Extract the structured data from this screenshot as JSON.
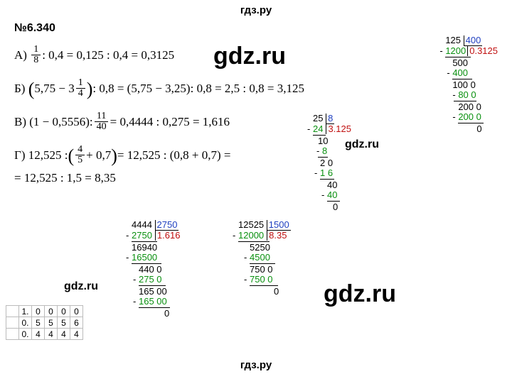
{
  "header": "гдз.ру",
  "footer": "гдз.ру",
  "problem_number": "№6.340",
  "watermarks": {
    "big1": "gdz.ru",
    "big2": "gdz.ru",
    "small1": "gdz.ru",
    "small2": "gdz.ru"
  },
  "lines": {
    "a_label": "А)",
    "a_frac_num": "1",
    "a_frac_den": "8",
    "a_rest": " : 0,4 = 0,125 : 0,4 = 0,3125",
    "b_label": "Б)",
    "b_inside_left": "5,75 − 3",
    "b_mixed_num": "1",
    "b_mixed_den": "4",
    "b_rest": " : 0,8 = (5,75 − 3,25): 0,8 = 2,5 : 0,8 = 3,125",
    "c_label": "В)",
    "c_part1": "(1 − 0,5556): ",
    "c_frac_num": "11",
    "c_frac_den": "40",
    "c_rest": " = 0,4444 : 0,275 = 1,616",
    "d_label": "Г)",
    "d_part1": "12,525 : ",
    "d_frac_num": "4",
    "d_frac_den": "5",
    "d_part2": " + 0,7",
    "d_rest": " = 12,525 : (0,8 + 0,7) =",
    "d_line2": "= 12,525 : 1,5 = 8,35"
  },
  "ld1": {
    "dividend": "125",
    "divisor": "400",
    "quotient": "0.3125",
    "steps": [
      {
        "minus": true,
        "val": "1200",
        "pad": 0,
        "green": true
      },
      {
        "hline_w": 36,
        "pad": 0
      },
      {
        "val": "500",
        "pad": 10
      },
      {
        "minus": true,
        "val": "400",
        "pad": 10,
        "green": true
      },
      {
        "hline_w": 28,
        "pad": 10
      },
      {
        "val": "100 0",
        "pad": 10
      },
      {
        "minus": true,
        "val": "80 0",
        "pad": 18,
        "green": true
      },
      {
        "hline_w": 32,
        "pad": 12
      },
      {
        "val": "200 0",
        "pad": 18
      },
      {
        "minus": true,
        "val": "200 0",
        "pad": 18,
        "green": true
      },
      {
        "hline_w": 36,
        "pad": 18
      },
      {
        "val": "0",
        "pad": 44
      }
    ]
  },
  "ld2": {
    "dividend": "25",
    "divisor": "8",
    "quotient": "3.125",
    "steps": [
      {
        "minus": true,
        "val": "24",
        "pad": 0,
        "green": true
      },
      {
        "hline_w": 18,
        "pad": 0
      },
      {
        "val": "10",
        "pad": 7
      },
      {
        "minus": true,
        "val": "8",
        "pad": 13,
        "green": true
      },
      {
        "hline_w": 14,
        "pad": 7
      },
      {
        "val": "2 0",
        "pad": 10
      },
      {
        "minus": true,
        "val": "1 6",
        "pad": 10,
        "green": true
      },
      {
        "hline_w": 20,
        "pad": 10
      },
      {
        "val": "40",
        "pad": 20
      },
      {
        "minus": true,
        "val": "40",
        "pad": 20,
        "green": true
      },
      {
        "hline_w": 18,
        "pad": 20
      },
      {
        "val": "0",
        "pad": 28
      }
    ]
  },
  "ld3": {
    "dividend": "4444",
    "divisor": "2750",
    "quotient": "1.616",
    "steps": [
      {
        "minus": true,
        "val": "2750",
        "pad": 0,
        "green": true
      },
      {
        "hline_w": 36,
        "pad": 0
      },
      {
        "val": "16940",
        "pad": 0
      },
      {
        "minus": true,
        "val": "16500",
        "pad": 0,
        "green": true
      },
      {
        "hline_w": 42,
        "pad": 0
      },
      {
        "val": "440 0",
        "pad": 10
      },
      {
        "minus": true,
        "val": "275 0",
        "pad": 10,
        "green": true
      },
      {
        "hline_w": 38,
        "pad": 10
      },
      {
        "val": "165 00",
        "pad": 10
      },
      {
        "minus": true,
        "val": "165 00",
        "pad": 10,
        "green": true
      },
      {
        "hline_w": 44,
        "pad": 10
      },
      {
        "val": "0",
        "pad": 46
      }
    ]
  },
  "ld4": {
    "dividend": "12525",
    "divisor": "1500",
    "quotient": "8.35",
    "steps": [
      {
        "minus": true,
        "val": "12000",
        "pad": 0,
        "green": true
      },
      {
        "hline_w": 44,
        "pad": 0
      },
      {
        "val": "5250",
        "pad": 16
      },
      {
        "minus": true,
        "val": "4500",
        "pad": 16,
        "green": true
      },
      {
        "hline_w": 36,
        "pad": 16
      },
      {
        "val": "750 0",
        "pad": 16
      },
      {
        "minus": true,
        "val": "750 0",
        "pad": 16,
        "green": true
      },
      {
        "hline_w": 40,
        "pad": 16
      },
      {
        "val": "0",
        "pad": 50
      }
    ]
  },
  "subtable": {
    "rows": [
      [
        "",
        "1.",
        "0",
        "0",
        "0",
        "0"
      ],
      [
        "",
        "0.",
        "5",
        "5",
        "5",
        "6"
      ],
      [
        "",
        "0.",
        "4",
        "4",
        "4",
        "4"
      ]
    ]
  },
  "colors": {
    "green": "#0a9010",
    "blue": "#2040c0",
    "red": "#c01010",
    "text": "#000000",
    "bg": "#ffffff",
    "grid": "#bbbbbb"
  }
}
